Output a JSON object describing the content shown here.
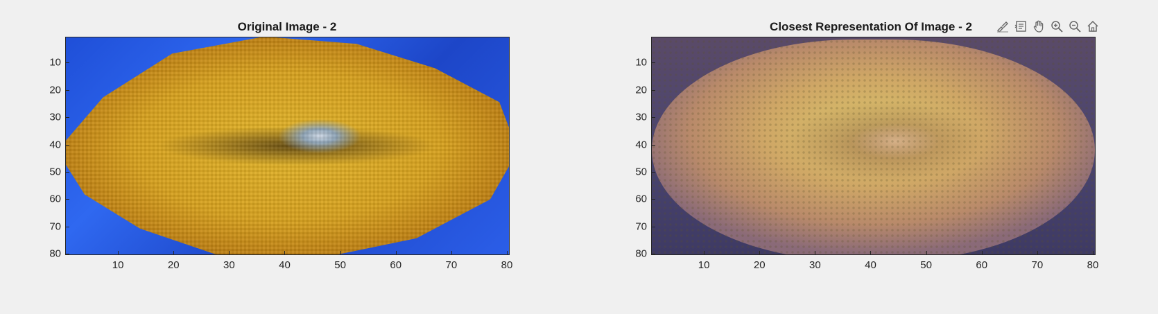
{
  "figure": {
    "axes": [
      {
        "title": "Original Image - 2",
        "y_ticks": [
          "10",
          "20",
          "30",
          "40",
          "50",
          "60",
          "70",
          "80"
        ],
        "x_ticks": [
          "10",
          "20",
          "30",
          "40",
          "50",
          "60",
          "70",
          "80"
        ]
      },
      {
        "title": "Closest Representation Of Image - 2",
        "y_ticks": [
          "10",
          "20",
          "30",
          "40",
          "50",
          "60",
          "70",
          "80"
        ],
        "x_ticks": [
          "10",
          "20",
          "30",
          "40",
          "50",
          "60",
          "70",
          "80"
        ]
      }
    ],
    "toolbar": [
      {
        "icon": "brush-icon"
      },
      {
        "icon": "data-tip-icon"
      },
      {
        "icon": "pan-hand-icon"
      },
      {
        "icon": "zoom-in-icon"
      },
      {
        "icon": "zoom-out-icon"
      },
      {
        "icon": "home-icon"
      }
    ],
    "colors": {
      "background": "#f0f0f0",
      "axis": "#262626",
      "original_bg_blue": "#2f68f0",
      "lemon_yellow": "#e2b52a",
      "reconstruction_bg": "#4b4570",
      "melon_yellow": "#d9c36a"
    }
  }
}
